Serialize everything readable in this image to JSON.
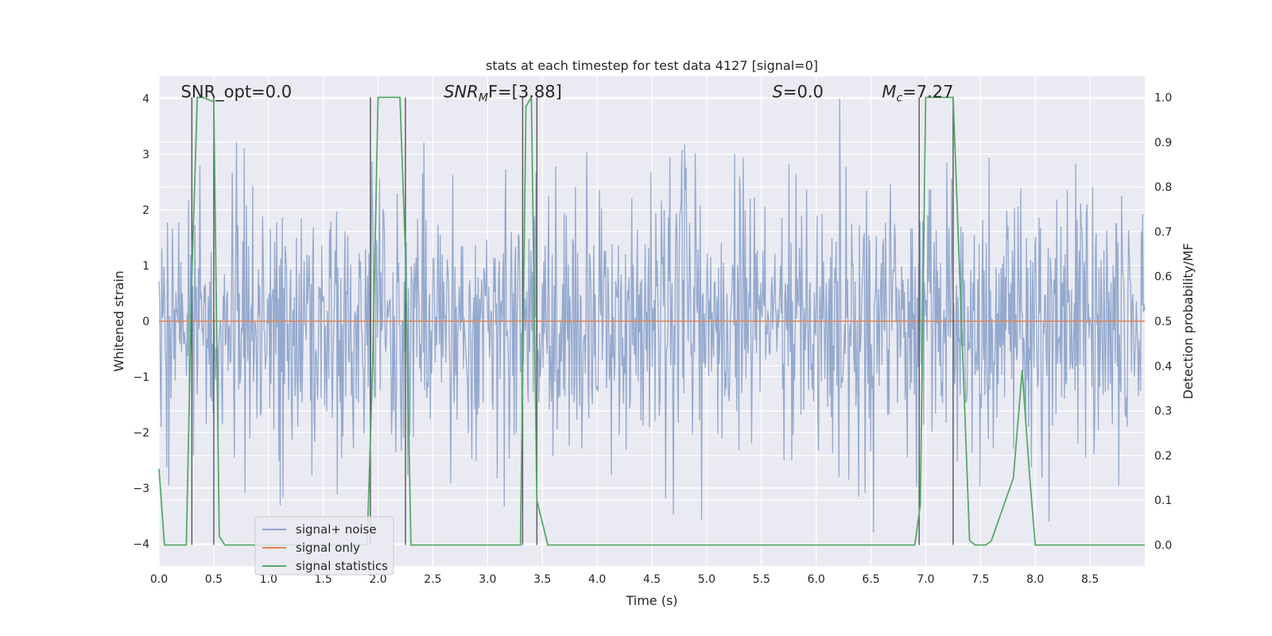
{
  "chart_data": {
    "type": "line",
    "title": "stats at each timestep for test data 4127 [signal=0]",
    "xlabel": "Time (s)",
    "ylabel": "Whitened strain",
    "y2label": "Detection probability/MF",
    "xlim": [
      0.0,
      9.0
    ],
    "ylim": [
      -4.4,
      4.4
    ],
    "y2lim": [
      -0.047,
      1.047
    ],
    "x_ticks": [
      "0.0",
      "0.5",
      "1.0",
      "1.5",
      "2.0",
      "2.5",
      "3.0",
      "3.5",
      "4.0",
      "4.5",
      "5.0",
      "5.5",
      "6.0",
      "6.5",
      "7.0",
      "7.5",
      "8.0",
      "8.5"
    ],
    "y_ticks": [
      "4",
      "3",
      "2",
      "1",
      "0",
      "−1",
      "−2",
      "−3",
      "−4"
    ],
    "y2_ticks": [
      "1.0",
      "0.9",
      "0.8",
      "0.7",
      "0.6",
      "0.5",
      "0.4",
      "0.3",
      "0.2",
      "0.1",
      "0.0"
    ],
    "grid": true,
    "legend_position": "lower-left",
    "annotations": [
      {
        "text": "SNR_opt=0.0",
        "x": 0.2,
        "y": 4.05
      },
      {
        "base": "SNR",
        "sub": "M",
        "rest": "F=[3.88]",
        "x": 2.6,
        "y": 4.05
      },
      {
        "base": "S",
        "sub": "",
        "rest": "=0.0",
        "x": 5.6,
        "y": 4.05
      },
      {
        "base": "M",
        "sub": "c",
        "rest": "=7.27",
        "x": 6.6,
        "y": 4.05
      }
    ],
    "series": [
      {
        "name": "signal+ noise",
        "color": "#4c72b0",
        "axis": "left",
        "description": "whitened noise, amplitude envelope roughly ±2 with spikes up to ±4",
        "x_range": [
          0.0,
          9.0
        ],
        "envelope": [
          -2.0,
          2.0
        ],
        "peak_extent": [
          -4.0,
          4.0
        ]
      },
      {
        "name": "signal only",
        "color": "#dd8452",
        "axis": "left",
        "x": [
          0.0,
          9.0
        ],
        "y": [
          0.0,
          0.0
        ]
      },
      {
        "name": "signal statistics",
        "color": "#55a868",
        "axis": "right",
        "x": [
          0.0,
          0.05,
          0.25,
          0.3,
          0.35,
          0.4,
          0.5,
          0.55,
          0.6,
          1.9,
          1.95,
          2.0,
          2.2,
          2.25,
          2.3,
          3.3,
          3.35,
          3.4,
          3.45,
          3.55,
          6.9,
          6.95,
          7.0,
          7.25,
          7.4,
          7.45,
          7.55,
          7.6,
          7.7,
          7.8,
          7.88,
          7.95,
          8.0,
          9.0
        ],
        "y": [
          0.17,
          0.0,
          0.0,
          0.6,
          1.0,
          1.0,
          0.99,
          0.02,
          0.0,
          0.0,
          0.4,
          1.0,
          1.0,
          0.65,
          0.0,
          0.0,
          0.98,
          1.0,
          0.1,
          0.0,
          0.0,
          0.09,
          1.0,
          1.0,
          0.01,
          0.0,
          0.0,
          0.01,
          0.08,
          0.15,
          0.39,
          0.15,
          0.0,
          0.0
        ]
      }
    ],
    "vertical_markers_x": [
      0.3,
      0.5,
      1.93,
      2.25,
      3.32,
      3.45,
      6.94,
      7.25
    ]
  }
}
